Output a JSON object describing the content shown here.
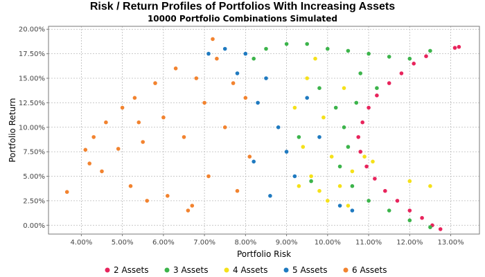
{
  "chart_data": {
    "type": "scatter",
    "title": "Risk / Return Profiles of Portfolios With Increasing Assets",
    "subtitle": "10000 Portfolio Combinations Simulated",
    "xlabel": "Portfolio Risk",
    "ylabel": "Portfolio Return",
    "xlim": [
      3.2,
      13.7
    ],
    "ylim": [
      -0.9,
      20.3
    ],
    "x_ticks": [
      "4.00%",
      "5.00%",
      "6.00%",
      "7.00%",
      "8.00%",
      "9.00%",
      "10.00%",
      "11.00%",
      "12.00%",
      "13.00%"
    ],
    "x_tick_values": [
      4,
      5,
      6,
      7,
      8,
      9,
      10,
      11,
      12,
      13
    ],
    "y_ticks": [
      "0.00%",
      "2.50%",
      "5.00%",
      "7.50%",
      "10.00%",
      "12.50%",
      "15.00%",
      "17.50%",
      "20.00%"
    ],
    "y_tick_values": [
      0,
      2.5,
      5,
      7.5,
      10,
      12.5,
      15,
      17.5,
      20
    ],
    "grid": true,
    "legend_position": "bottom",
    "series": [
      {
        "name": "2 Assets",
        "color": "#e8245c",
        "points": [
          [
            10.75,
            9.0
          ],
          [
            10.8,
            7.5
          ],
          [
            10.85,
            10.5
          ],
          [
            10.95,
            6.0
          ],
          [
            11.0,
            12.0
          ],
          [
            11.15,
            4.75
          ],
          [
            11.2,
            13.25
          ],
          [
            11.4,
            3.5
          ],
          [
            11.5,
            14.5
          ],
          [
            11.7,
            2.5
          ],
          [
            11.8,
            15.5
          ],
          [
            12.0,
            1.5
          ],
          [
            12.1,
            16.5
          ],
          [
            12.3,
            0.75
          ],
          [
            12.4,
            17.25
          ],
          [
            12.55,
            0.0
          ],
          [
            12.75,
            -0.4
          ],
          [
            13.1,
            18.1
          ],
          [
            13.2,
            18.2
          ]
        ]
      },
      {
        "name": "3 Assets",
        "color": "#3cb44b",
        "points": [
          [
            8.2,
            17.0
          ],
          [
            8.5,
            18.0
          ],
          [
            9.0,
            18.5
          ],
          [
            9.5,
            18.5
          ],
          [
            10.0,
            18.0
          ],
          [
            10.5,
            17.8
          ],
          [
            11.0,
            17.5
          ],
          [
            11.5,
            17.2
          ],
          [
            12.0,
            17.0
          ],
          [
            12.5,
            17.8
          ],
          [
            9.8,
            14.0
          ],
          [
            10.2,
            12.0
          ],
          [
            10.4,
            10.0
          ],
          [
            10.5,
            8.0
          ],
          [
            10.3,
            6.0
          ],
          [
            10.6,
            4.0
          ],
          [
            11.0,
            2.5
          ],
          [
            11.5,
            1.5
          ],
          [
            12.0,
            0.5
          ],
          [
            12.5,
            -0.2
          ],
          [
            10.8,
            15.5
          ],
          [
            11.2,
            14.0
          ],
          [
            9.3,
            9.0
          ],
          [
            9.6,
            4.5
          ],
          [
            10.7,
            12.5
          ]
        ]
      },
      {
        "name": "4 Assets",
        "color": "#f5e11a",
        "points": [
          [
            9.2,
            12.0
          ],
          [
            9.4,
            8.0
          ],
          [
            9.6,
            5.0
          ],
          [
            9.8,
            3.5
          ],
          [
            10.0,
            2.5
          ],
          [
            9.5,
            15.0
          ],
          [
            9.9,
            11.0
          ],
          [
            10.1,
            7.0
          ],
          [
            10.3,
            4.0
          ],
          [
            10.6,
            5.5
          ],
          [
            9.7,
            17.0
          ],
          [
            10.4,
            14.0
          ],
          [
            10.9,
            7.0
          ],
          [
            11.1,
            6.5
          ],
          [
            12.0,
            4.5
          ],
          [
            12.5,
            4.0
          ],
          [
            10.5,
            2.0
          ],
          [
            9.3,
            4.0
          ]
        ]
      },
      {
        "name": "5 Assets",
        "color": "#1f7ac0",
        "points": [
          [
            8.0,
            17.5
          ],
          [
            8.5,
            15.0
          ],
          [
            8.3,
            12.5
          ],
          [
            8.8,
            10.0
          ],
          [
            9.0,
            7.5
          ],
          [
            9.2,
            5.0
          ],
          [
            8.6,
            3.0
          ],
          [
            7.5,
            18.0
          ],
          [
            7.1,
            17.5
          ],
          [
            9.5,
            13.0
          ],
          [
            9.8,
            9.0
          ],
          [
            10.3,
            2.0
          ],
          [
            8.2,
            6.5
          ],
          [
            10.6,
            1.5
          ],
          [
            7.8,
            15.5
          ]
        ]
      },
      {
        "name": "6 Assets",
        "color": "#f2832f",
        "points": [
          [
            3.65,
            3.4
          ],
          [
            4.1,
            7.7
          ],
          [
            4.2,
            6.3
          ],
          [
            4.3,
            9.0
          ],
          [
            4.5,
            5.5
          ],
          [
            4.6,
            10.5
          ],
          [
            4.9,
            7.8
          ],
          [
            5.0,
            12.0
          ],
          [
            5.2,
            4.0
          ],
          [
            5.3,
            13.0
          ],
          [
            5.5,
            8.5
          ],
          [
            5.6,
            2.5
          ],
          [
            5.8,
            14.5
          ],
          [
            6.0,
            11.0
          ],
          [
            6.1,
            3.0
          ],
          [
            6.3,
            16.0
          ],
          [
            6.5,
            9.0
          ],
          [
            6.6,
            1.5
          ],
          [
            6.8,
            15.0
          ],
          [
            7.0,
            12.5
          ],
          [
            7.1,
            5.0
          ],
          [
            7.3,
            17.0
          ],
          [
            7.5,
            10.0
          ],
          [
            7.7,
            14.5
          ],
          [
            7.8,
            3.5
          ],
          [
            8.0,
            13.0
          ],
          [
            8.1,
            7.0
          ],
          [
            7.2,
            19.0
          ],
          [
            6.7,
            2.0
          ],
          [
            5.4,
            10.5
          ]
        ]
      }
    ]
  }
}
